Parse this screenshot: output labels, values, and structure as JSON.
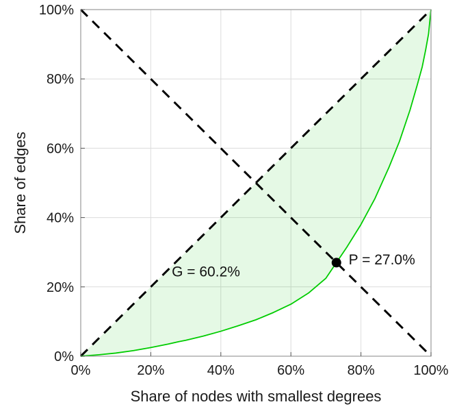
{
  "chart_data": {
    "type": "line",
    "title": "",
    "xlabel": "Share of nodes with smallest degrees",
    "ylabel": "Share of edges",
    "xlim": [
      0,
      100
    ],
    "ylim": [
      0,
      100
    ],
    "grid": true,
    "legend": "none",
    "ticks": {
      "values": [
        0,
        20,
        40,
        60,
        80,
        100
      ],
      "x_labels": [
        "0%",
        "20%",
        "40%",
        "60%",
        "80%",
        "100%"
      ],
      "y_labels": [
        "0%",
        "20%",
        "40%",
        "60%",
        "80%",
        "100%"
      ]
    },
    "series": [
      {
        "name": "lorenz-curve",
        "style": "solid",
        "color": "#00cc00",
        "x": [
          0,
          5,
          10,
          15,
          20,
          25,
          28,
          30,
          35,
          40,
          45,
          50,
          55,
          60,
          65,
          70,
          73,
          76,
          80,
          84,
          88,
          91,
          94,
          96,
          97.5,
          98.5,
          99.3,
          100
        ],
        "y": [
          0,
          0.4,
          0.9,
          1.6,
          2.5,
          3.5,
          4.2,
          4.6,
          5.8,
          7.2,
          8.8,
          10.5,
          12.6,
          15.0,
          18.2,
          22.5,
          27.0,
          31.5,
          38.0,
          45.5,
          54.5,
          62.0,
          71.0,
          78.0,
          83.5,
          88.5,
          93.0,
          100
        ]
      },
      {
        "name": "equality-diagonal",
        "style": "dashed",
        "color": "#000000",
        "x": [
          0,
          100
        ],
        "y": [
          0,
          100
        ]
      },
      {
        "name": "anti-diagonal",
        "style": "dashed",
        "color": "#000000",
        "x": [
          0,
          100
        ],
        "y": [
          100,
          0
        ]
      }
    ],
    "shaded_area": {
      "between": [
        "equality-diagonal",
        "lorenz-curve"
      ],
      "fill": "rgba(0,200,0,0.10)"
    },
    "point": {
      "x": 73,
      "y": 27,
      "color": "#000000",
      "label": "P = 27.0%"
    },
    "annotations": [
      {
        "id": "gini-label",
        "text": "G = 60.2%",
        "x": 26,
        "y": 23
      },
      {
        "id": "p-label",
        "text": "P = 27.0%",
        "x": 76.5,
        "y": 26.5
      }
    ],
    "colors": {
      "grid": "#dcdcdc",
      "box": "#9a9a9a",
      "tick": "#555555",
      "tick_text": "#1a1a1a",
      "annotation_text": "#111111"
    }
  }
}
